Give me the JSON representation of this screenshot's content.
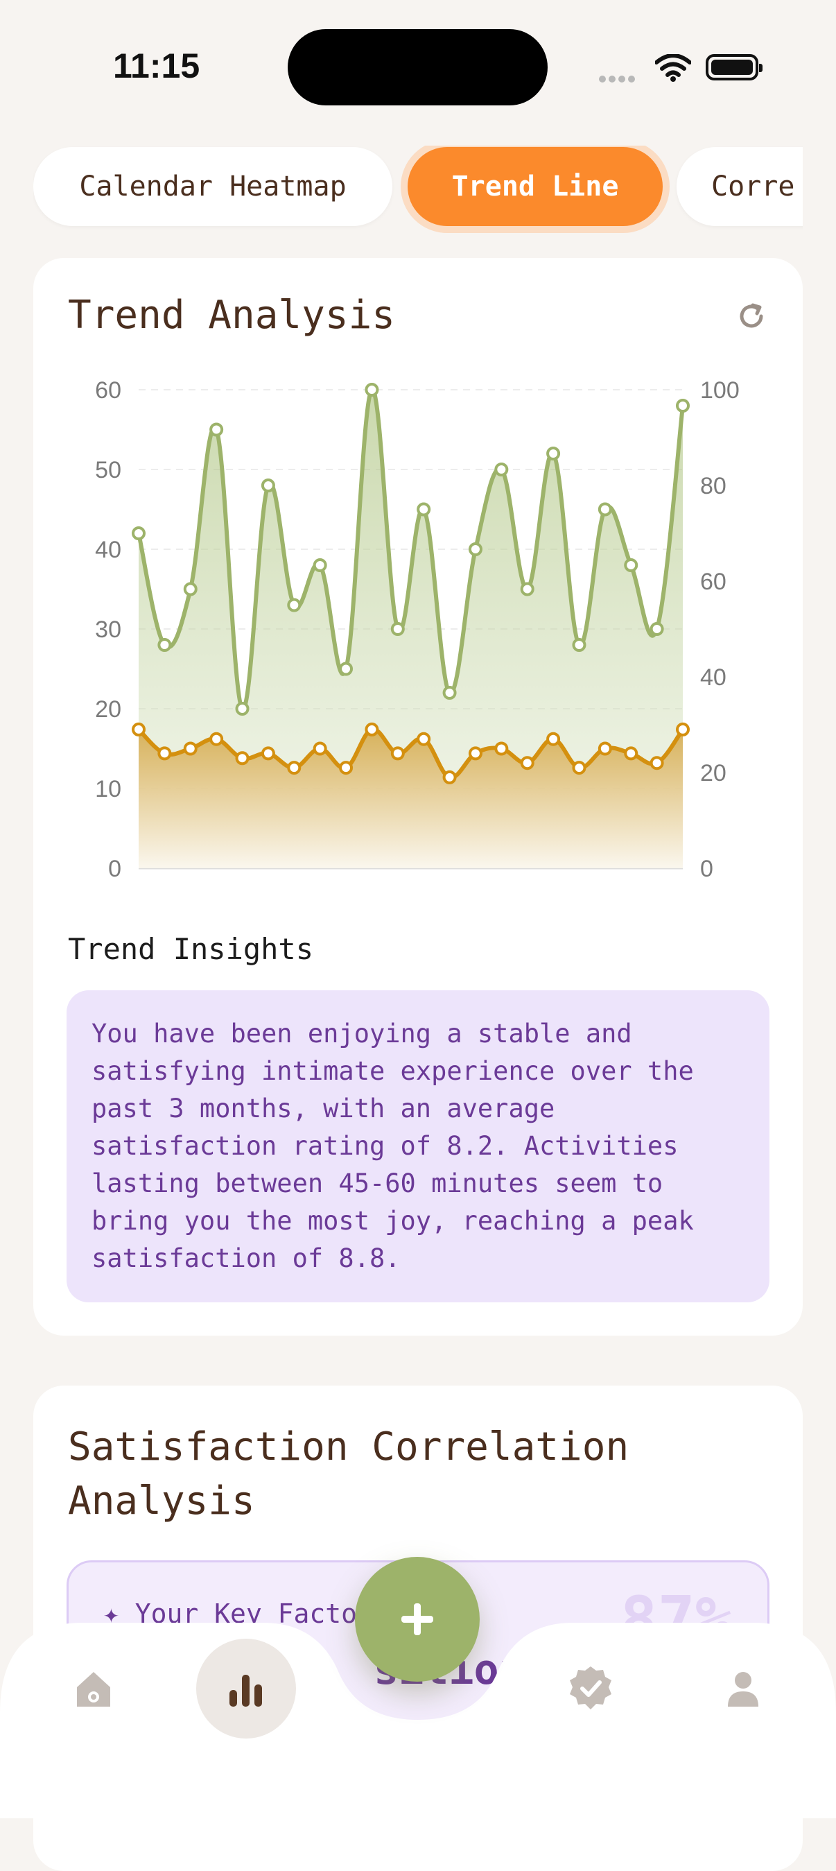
{
  "status_bar": {
    "time": "11:15"
  },
  "tabs": [
    {
      "label": "Calendar Heatmap",
      "active": false
    },
    {
      "label": "Trend Line",
      "active": true
    },
    {
      "label": "Corre",
      "active": false
    }
  ],
  "trend_card": {
    "title": "Trend Analysis",
    "refresh_icon": "refresh-icon",
    "insights_heading": "Trend Insights",
    "insights_text": "You have been enjoying a stable and satisfying intimate experience over the past 3 months, with an average satisfaction rating of 8.2. Activities lasting between 45-60 minutes seem to bring you the most joy, reaching a peak satisfaction of 8.8."
  },
  "correlation_card": {
    "title": "Satisfaction Correlation Analysis",
    "key_factors_label": "✦ Your Key Factor",
    "key_factor_value": "sitions",
    "key_factor_percent": "87%"
  },
  "nav": {
    "items": [
      "home-icon",
      "chart-icon",
      "verified-icon",
      "profile-icon"
    ],
    "active": "chart-icon",
    "fab_icon": "plus-icon"
  },
  "colors": {
    "accent_orange": "#fb8a2c",
    "green_series": "#9db36a",
    "gold_series": "#d4900f",
    "insight_purple": "#6b3a97"
  },
  "chart_data": {
    "type": "line",
    "x": [
      1,
      2,
      3,
      4,
      5,
      6,
      7,
      8,
      9,
      10,
      11,
      12,
      13,
      14,
      15,
      16,
      17,
      18,
      19,
      20,
      21,
      22
    ],
    "series": [
      {
        "axis": "left",
        "color": "#9db36a",
        "values": [
          42,
          28,
          35,
          55,
          20,
          48,
          33,
          38,
          25,
          60,
          30,
          45,
          22,
          40,
          50,
          35,
          52,
          28,
          45,
          38,
          30,
          58
        ]
      },
      {
        "axis": "right",
        "color": "#d4900f",
        "values": [
          29,
          24,
          25,
          27,
          23,
          24,
          21,
          25,
          21,
          29,
          24,
          27,
          19,
          24,
          25,
          22,
          27,
          21,
          25,
          24,
          22,
          29
        ]
      }
    ],
    "yleft_ticks": [
      "0",
      "10",
      "20",
      "30",
      "40",
      "50",
      "60"
    ],
    "yright_ticks": [
      "0",
      "20",
      "40",
      "60",
      "80",
      "100"
    ],
    "ylim_left": [
      0,
      60
    ],
    "ylim_right": [
      0,
      100
    ],
    "grid": true
  }
}
